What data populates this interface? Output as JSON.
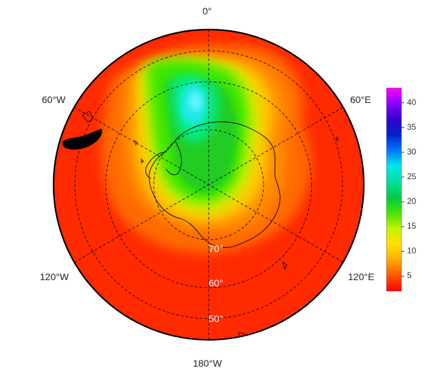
{
  "map": {
    "projection": "south-polar-stereographic",
    "lon_labels": {
      "top": "0°",
      "upper_left": "60°W",
      "upper_right": "60°E",
      "lower_left": "120°W",
      "lower_right": "120°E",
      "bottom": "180°W"
    },
    "lat_labels": [
      "70°",
      "60°",
      "50°"
    ],
    "field": {
      "background_color": "#ff2a00",
      "outer_band_color": "#ff4400",
      "ring_color": "#ff6a00",
      "hole_colors": [
        "#ff8a00",
        "#ffc800",
        "#c8f000",
        "#3ee600",
        "#22cc22",
        "#00ee88",
        "#22e8e8"
      ]
    },
    "coastline_color": "#000000",
    "grid_color": "#000000"
  },
  "colorbar": {
    "ticks": [
      "40",
      "35",
      "30",
      "25",
      "20",
      "15",
      "10",
      "5"
    ],
    "min": 2,
    "max": 43,
    "colors": [
      "#ff0000",
      "#ff5500",
      "#ffaa00",
      "#ffe000",
      "#c8f000",
      "#44e600",
      "#00cc44",
      "#00e0a0",
      "#00e8e8",
      "#0077ff",
      "#0022cc",
      "#3300cc",
      "#8800ff",
      "#ff00ff"
    ]
  }
}
